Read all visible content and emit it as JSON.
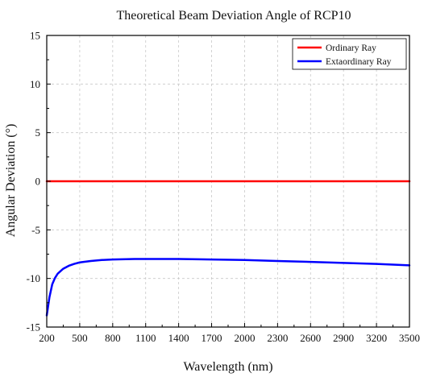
{
  "chart_data": {
    "type": "line",
    "title": "Theoretical Beam Deviation Angle of RCP10",
    "xlabel": "Wavelength (nm)",
    "ylabel": "Angular Deviation (°)",
    "xlim": [
      200,
      3500
    ],
    "ylim": [
      -15,
      15
    ],
    "xticks": [
      200,
      500,
      800,
      1100,
      1400,
      1700,
      2000,
      2300,
      2600,
      2900,
      3200,
      3500
    ],
    "yticks": [
      15,
      10,
      5,
      0,
      -5,
      -10,
      -15
    ],
    "grid": true,
    "legend_position": "top-right",
    "series": [
      {
        "name": "Ordinary Ray",
        "color": "#ff0000",
        "x": [
          200,
          3500
        ],
        "y": [
          0,
          0
        ]
      },
      {
        "name": "Extaordinary Ray",
        "color": "#0000ff",
        "x": [
          200,
          225,
          250,
          275,
          300,
          350,
          400,
          450,
          500,
          600,
          700,
          800,
          1000,
          1200,
          1400,
          1700,
          2000,
          2300,
          2600,
          2900,
          3200,
          3500
        ],
        "y": [
          -13.8,
          -11.9,
          -10.6,
          -9.95,
          -9.5,
          -9.0,
          -8.7,
          -8.5,
          -8.35,
          -8.2,
          -8.1,
          -8.05,
          -8.0,
          -8.0,
          -8.0,
          -8.05,
          -8.1,
          -8.2,
          -8.3,
          -8.4,
          -8.5,
          -8.65
        ]
      }
    ]
  }
}
